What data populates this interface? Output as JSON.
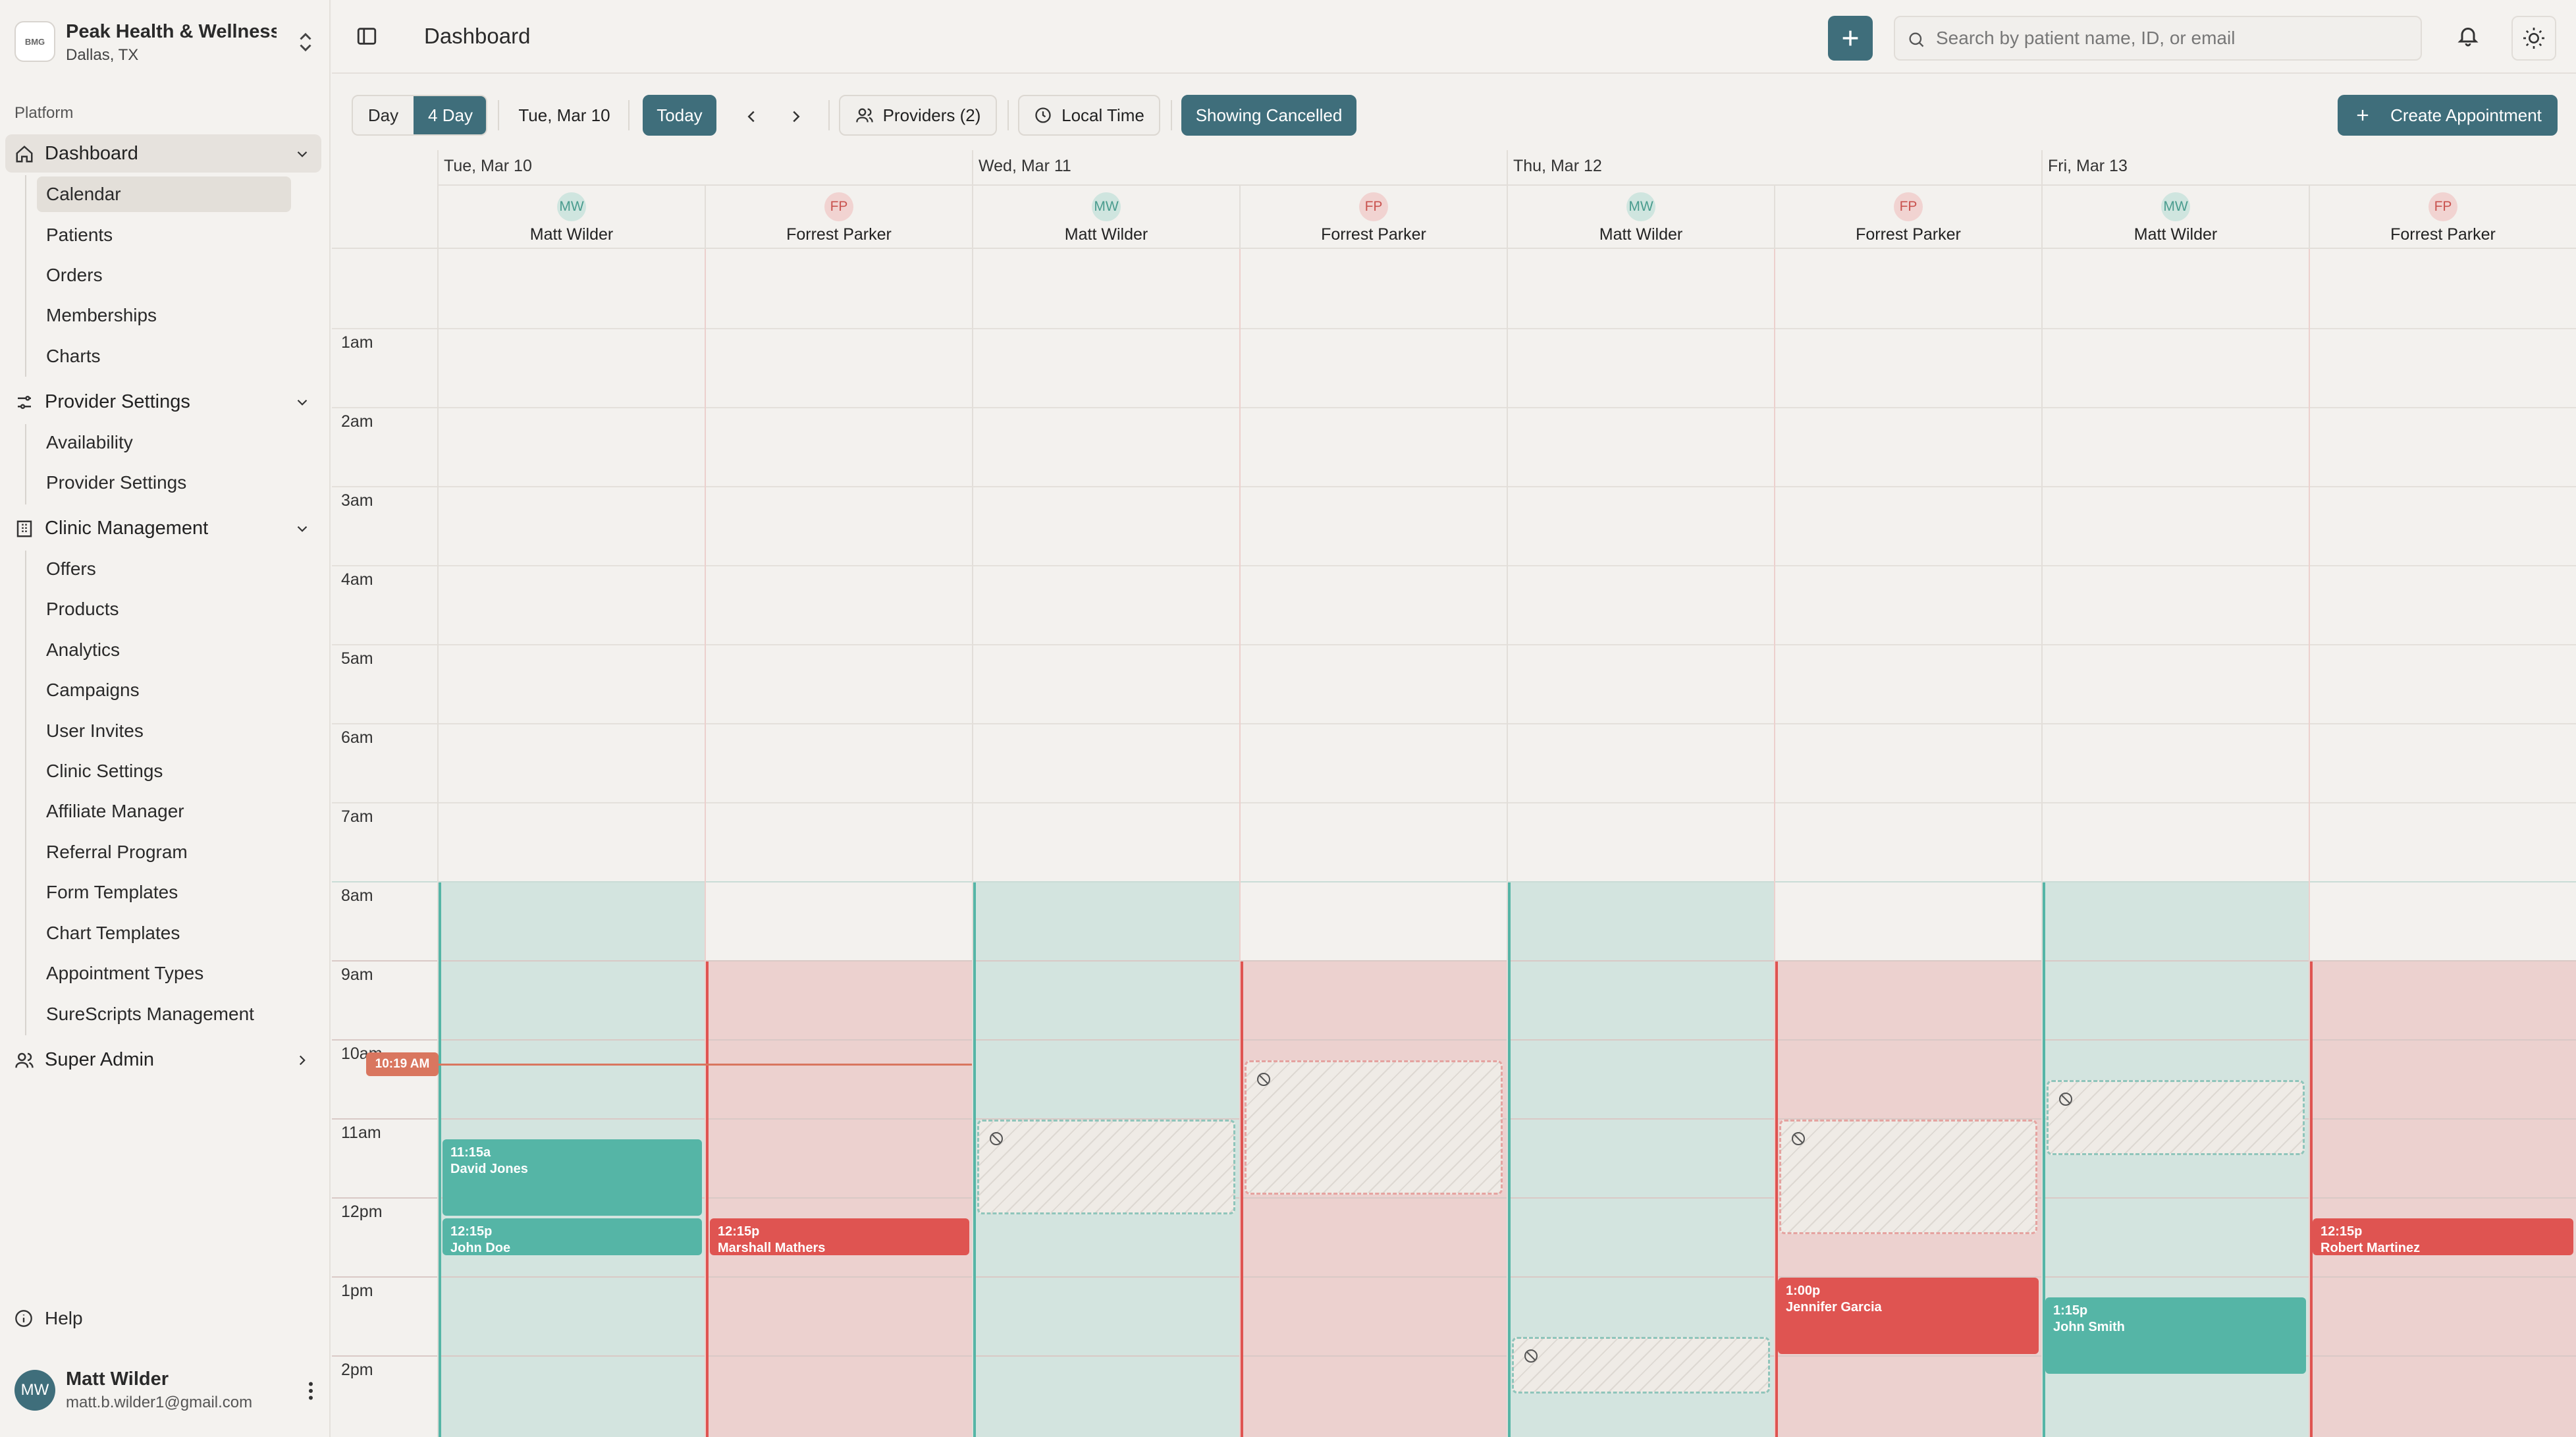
{
  "org": {
    "logo_text": "BMG",
    "name": "Peak Health & Wellness",
    "location": "Dallas, TX"
  },
  "sidebar": {
    "section_label": "Platform",
    "dashboard": {
      "label": "Dashboard",
      "items": [
        "Calendar",
        "Patients",
        "Orders",
        "Memberships",
        "Charts"
      ]
    },
    "provider_settings": {
      "label": "Provider Settings",
      "items": [
        "Availability",
        "Provider Settings"
      ]
    },
    "clinic_management": {
      "label": "Clinic Management",
      "items": [
        "Offers",
        "Products",
        "Analytics",
        "Campaigns",
        "User Invites",
        "Clinic Settings",
        "Affiliate Manager",
        "Referral Program",
        "Form Templates",
        "Chart Templates",
        "Appointment Types",
        "SureScripts Management"
      ]
    },
    "super_admin": {
      "label": "Super Admin"
    },
    "help": "Help"
  },
  "user": {
    "initials": "MW",
    "name": "Matt Wilder",
    "email": "matt.b.wilder1@gmail.com"
  },
  "header": {
    "title": "Dashboard",
    "search_placeholder": "Search by patient name, ID, or email"
  },
  "toolbar": {
    "view_day": "Day",
    "view_4day": "4 Day",
    "date": "Tue, Mar 10",
    "today": "Today",
    "providers": "Providers (2)",
    "timezone": "Local Time",
    "showing_cancelled": "Showing Cancelled",
    "create": "Create Appointment"
  },
  "colors": {
    "accent": "#3f6e7b",
    "teal": "#55b5a6",
    "red": "#df5451",
    "teal_bg": "#d3e4df",
    "red_bg": "#ecd1cf"
  },
  "calendar": {
    "now_label": "10:19 AM",
    "hours": [
      "1am",
      "2am",
      "3am",
      "4am",
      "5am",
      "6am",
      "7am",
      "8am",
      "9am",
      "10am",
      "11am",
      "12pm",
      "1pm",
      "2pm"
    ],
    "days": [
      "Tue, Mar 10",
      "Wed, Mar 11",
      "Thu, Mar 12",
      "Fri, Mar 13"
    ],
    "providers": [
      {
        "initials": "MW",
        "name": "Matt Wilder"
      },
      {
        "initials": "FP",
        "name": "Forrest Parker"
      }
    ],
    "appointments": [
      {
        "time": "11:15a",
        "patient": "David Jones"
      },
      {
        "time": "12:15p",
        "patient": "John Doe"
      },
      {
        "time": "12:15p",
        "patient": "Marshall Mathers"
      },
      {
        "time": "1:00p",
        "patient": "Jennifer Garcia"
      },
      {
        "time": "1:15p",
        "patient": "John Smith"
      },
      {
        "time": "12:15p",
        "patient": "Robert Martinez"
      }
    ]
  }
}
